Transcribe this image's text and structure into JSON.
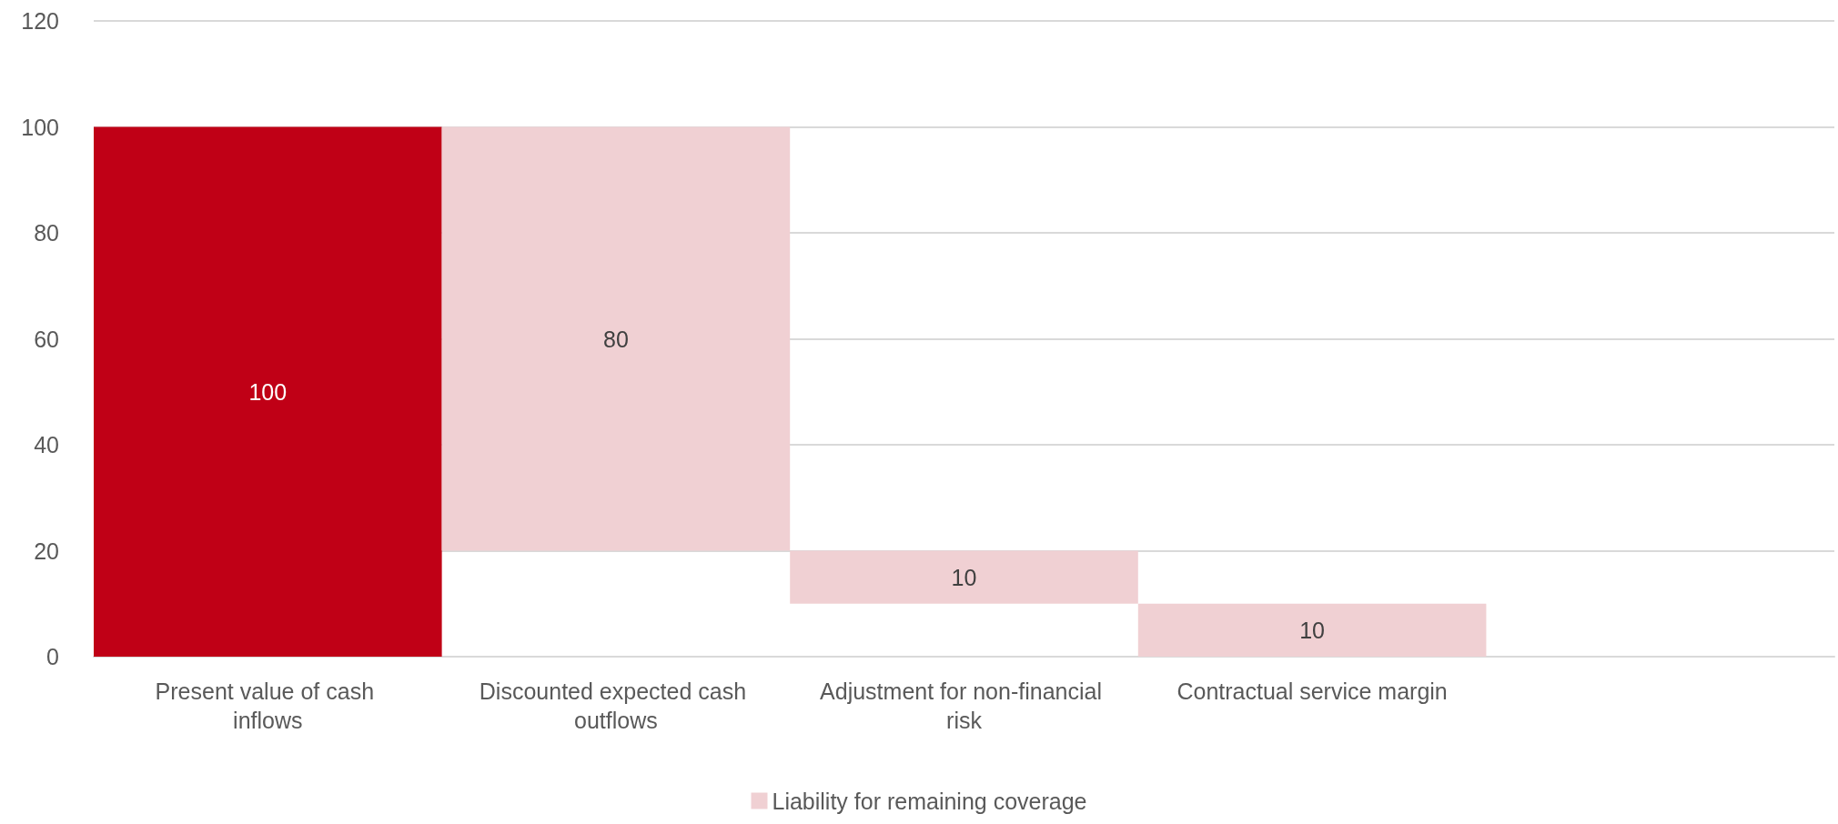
{
  "chart_data": {
    "type": "bar",
    "categories": [
      "Present value of cash inflows",
      "Discounted expected cash outflows",
      "Adjustment for non-financial risk",
      "Contractual service margin",
      null
    ],
    "series": [
      {
        "name": "Liability for remaining coverage",
        "color": "#f0d0d3",
        "colors": [
          "#c00016",
          "#f0d0d3",
          "#f0d0d3",
          "#f0d0d3",
          null
        ],
        "values": [
          100,
          80,
          10,
          10,
          null
        ],
        "base": [
          0,
          20,
          10,
          0,
          null
        ]
      }
    ],
    "ylim": [
      0,
      120
    ],
    "yticks": [
      0,
      20,
      40,
      60,
      80,
      100,
      120
    ],
    "grid": "y",
    "legend": "bottom",
    "data_labels": true
  }
}
